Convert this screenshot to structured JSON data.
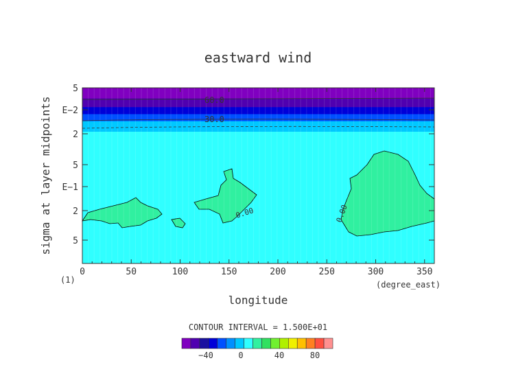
{
  "chart_data": {
    "type": "heatmap",
    "title": "eastward wind",
    "xlabel": "longitude",
    "ylabel": "sigma at layer midpoints",
    "x_unit": "(degree_east)",
    "y_scale_note": "(1)",
    "xlim": [
      0,
      360
    ],
    "x_ticks": [
      "0",
      "50",
      "100",
      "150",
      "200",
      "250",
      "300",
      "350"
    ],
    "y_scale": "log",
    "y_ticks": [
      "5",
      "E−2",
      "2",
      "5",
      "E−1",
      "2",
      "5"
    ],
    "contour_labels": [
      "60.0",
      "30.0",
      "0.00",
      "0.00"
    ],
    "contour_interval_text": "CONTOUR INTERVAL = 1.500E+01",
    "colorbar": {
      "labels": [
        "−40",
        "0",
        "40",
        "80"
      ],
      "colors": [
        "#8000c0",
        "#5000b0",
        "#1a10a0",
        "#0000d8",
        "#0050ff",
        "#0090ff",
        "#00c8ff",
        "#30ffff",
        "#30f0a0",
        "#30e060",
        "#70f030",
        "#b0f000",
        "#f0f000",
        "#ffc000",
        "#ff8020",
        "#ff5040",
        "#ff9090"
      ]
    },
    "bands": [
      {
        "top": 0.0,
        "bottom": 0.06,
        "color": "#8000c0"
      },
      {
        "top": 0.06,
        "bottom": 0.11,
        "color": "#5000b0"
      },
      {
        "top": 0.11,
        "bottom": 0.15,
        "color": "#0000d8"
      },
      {
        "top": 0.15,
        "bottom": 0.19,
        "color": "#0050ff"
      },
      {
        "top": 0.19,
        "bottom": 0.25,
        "color": "#00c8ff"
      },
      {
        "top": 0.25,
        "bottom": 1.0,
        "color": "#30ffff"
      }
    ],
    "zero_regions_lon": [
      [
        0,
        78
      ],
      [
        113,
        178
      ],
      [
        262,
        360
      ]
    ]
  }
}
